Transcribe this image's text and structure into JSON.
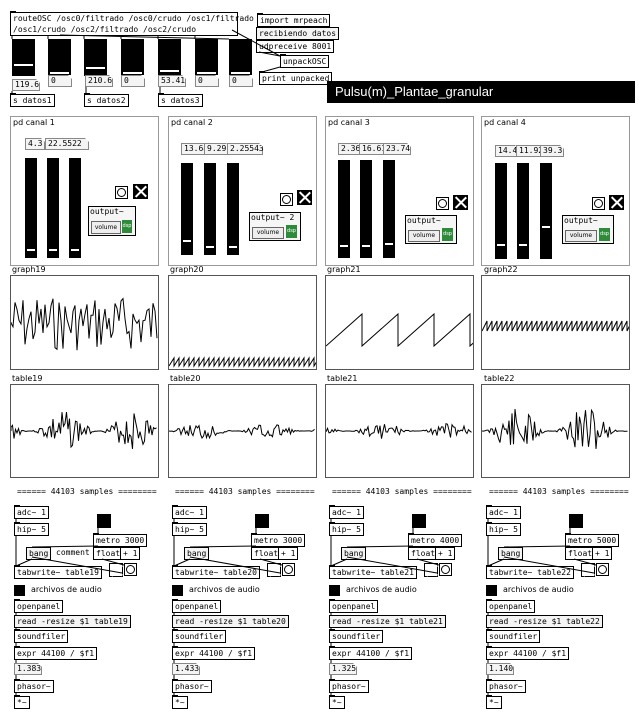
{
  "header": {
    "route_object": "routeOSC /osc0/filtrado /osc0/crudo /osc1/filtrado",
    "route_object_line2": "/osc1/crudo /osc2/filtrado /osc2/crudo",
    "import_obj": "import mrpeach",
    "recv_msg": "recibiendo datos",
    "udp_obj": "udpreceive 8001",
    "unpack_obj": "unpackOSC",
    "print_obj": "print unpacked",
    "num_values": [
      "119.6",
      "0",
      "210.6",
      "0",
      "53.41",
      "0",
      "0"
    ],
    "send_objects": [
      "s datos1",
      "s datos2",
      "s datos3"
    ]
  },
  "patch_title": "Pulsu(m)_Plantae_granular",
  "panels": [
    {
      "name": "pd canal 1",
      "nums": [
        "4.3",
        "22.5522"
      ],
      "output": "output~",
      "vol": "volume",
      "dsp": "dsp",
      "knobs": [
        0.95,
        0.95,
        0.95
      ]
    },
    {
      "name": "pd canal 2",
      "nums": [
        "13.68",
        "9.29",
        "2.25543"
      ],
      "output": "output~ 2",
      "vol": "volume",
      "dsp": "dsp",
      "knobs": [
        0.85,
        0.92,
        0.92
      ]
    },
    {
      "name": "pd canal 3",
      "nums": [
        "2.36",
        "16.61",
        "23.74"
      ],
      "output": "output~",
      "vol": "volume",
      "dsp": "dsp",
      "knobs": [
        0.9,
        0.9,
        0.88
      ]
    },
    {
      "name": "pd canal 4",
      "nums": [
        "14.49",
        "11.92",
        "39.3"
      ],
      "output": "output~",
      "vol": "volume",
      "dsp": "dsp",
      "knobs": [
        0.9,
        0.9,
        0.7
      ]
    }
  ],
  "graphs": [
    {
      "label": "graph19",
      "kind": "dense"
    },
    {
      "label": "graph20",
      "kind": "saw-low"
    },
    {
      "label": "graph21",
      "kind": "saw-big"
    },
    {
      "label": "graph22",
      "kind": "saw-mid"
    }
  ],
  "tables": [
    "table19",
    "table20",
    "table21",
    "table22"
  ],
  "recorders": [
    {
      "samples": "====== 44103 samples ========",
      "adc": "adc~ 1",
      "hip": "hip~ 5",
      "bang": "bang",
      "comment": "comment",
      "metro": "metro 3000",
      "float": "float",
      "plus": "+ 1",
      "tabwrite": "tabwrite~ table19",
      "archivos": "archivos de audio",
      "openpanel": "openpanel",
      "read": "read -resize $1 table19",
      "soundfiler": "soundfiler",
      "expr": "expr 44100 / $f1",
      "num": "1.383",
      "phasor": "phasor~",
      "bottom": "*~"
    },
    {
      "samples": "====== 44103 samples ========",
      "adc": "adc~ 1",
      "hip": "hip~ 5",
      "bang": "bang",
      "comment": "",
      "metro": "metro 3000",
      "float": "float",
      "plus": "+ 1",
      "tabwrite": "tabwrite~ table20",
      "archivos": "archivos de audio",
      "openpanel": "openpanel",
      "read": "read -resize $1 table20",
      "soundfiler": "soundfiler",
      "expr": "expr 44100 / $f1",
      "num": "1.433",
      "phasor": "phasor~",
      "bottom": "*~"
    },
    {
      "samples": "====== 44103 samples ========",
      "adc": "adc~ 1",
      "hip": "hip~ 5",
      "bang": "bang",
      "comment": "",
      "metro": "metro 4000",
      "float": "float",
      "plus": "+ 1",
      "tabwrite": "tabwrite~ table21",
      "archivos": "archivos de audio",
      "openpanel": "openpanel",
      "read": "read -resize $1 table21",
      "soundfiler": "soundfiler",
      "expr": "expr 44100 / $f1",
      "num": "1.325",
      "phasor": "phasor~",
      "bottom": "*~"
    },
    {
      "samples": "====== 44103 samples ========",
      "adc": "adc~ 1",
      "hip": "hip~ 5",
      "bang": "bang",
      "comment": "",
      "metro": "metro 5000",
      "float": "float",
      "plus": "+ 1",
      "tabwrite": "tabwrite~ table22",
      "archivos": "archivos de audio",
      "openpanel": "openpanel",
      "read": "read -resize $1 table22",
      "soundfiler": "soundfiler",
      "expr": "expr 44100 / $f1",
      "num": "1.140",
      "phasor": "phasor~",
      "bottom": "*~"
    }
  ]
}
